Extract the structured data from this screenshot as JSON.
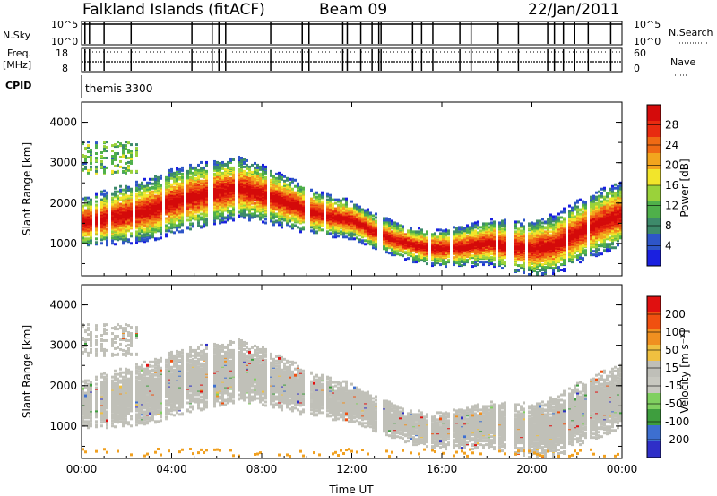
{
  "header": {
    "station": "Falkland Islands (fitACF)",
    "beam": "Beam 09",
    "date": "22/Jan/2011"
  },
  "status_panels": {
    "nsky_label": "N.Sky",
    "nsky_ticks": [
      "10^5",
      "10^0"
    ],
    "nsearch_label": "N.Search",
    "nsearch_ticks": [
      "10^5",
      "10^0"
    ],
    "freq_label_1": "Freq.",
    "freq_label_2": "[MHz]",
    "freq_ticks": [
      "18",
      "8"
    ],
    "nave_label": "Nave",
    "nave_ticks": [
      "60",
      "0"
    ],
    "cpid_label": "CPID",
    "cpid_value": "themis 3300"
  },
  "colors": {
    "power_scale": [
      "#1a20e0",
      "#2e55c8",
      "#3d8a6a",
      "#4fb04a",
      "#9ad23a",
      "#f2e52b",
      "#f2a51e",
      "#ef6a14",
      "#e82b10",
      "#d40b0b"
    ],
    "velocity_scale": [
      "#2f2fc8",
      "#3d6fd0",
      "#3e9e3e",
      "#80d060",
      "#c8c8c0",
      "#bfbfb8",
      "#f0c040",
      "#f09020",
      "#f05010",
      "#e01010"
    ],
    "ground_scatter": "#c0c0b8"
  },
  "chart_data": [
    {
      "type": "heatmap",
      "title": "Power",
      "xlabel": "Time UT",
      "ylabel": "Slant Range [km]",
      "x_ticks": [
        "00:00",
        "04:00",
        "08:00",
        "12:00",
        "16:00",
        "20:00",
        "00:00"
      ],
      "y_ticks": [
        "1000",
        "2000",
        "3000",
        "4000"
      ],
      "ylim": [
        200,
        4500
      ],
      "colorbar_label": "Power [dB]",
      "colorbar_ticks": [
        "4",
        "8",
        "12",
        "16",
        "20",
        "24",
        "28"
      ],
      "band_center_km": [
        [
          0,
          1500
        ],
        [
          1,
          1600
        ],
        [
          2,
          1700
        ],
        [
          3,
          1800
        ],
        [
          4,
          2000
        ],
        [
          5,
          2150
        ],
        [
          6,
          2250
        ],
        [
          7,
          2350
        ],
        [
          8,
          2200
        ],
        [
          9,
          2000
        ],
        [
          10,
          1800
        ],
        [
          11,
          1650
        ],
        [
          12,
          1550
        ],
        [
          13,
          1250
        ],
        [
          14,
          1050
        ],
        [
          15,
          900
        ],
        [
          16,
          850
        ],
        [
          17,
          900
        ],
        [
          18,
          1000
        ],
        [
          19,
          900
        ],
        [
          20,
          850
        ],
        [
          21,
          950
        ],
        [
          22,
          1250
        ],
        [
          23,
          1500
        ],
        [
          24,
          1700
        ]
      ]
    },
    {
      "type": "heatmap",
      "title": "Velocity",
      "xlabel": "Time UT",
      "ylabel": "Slant Range [km]",
      "x_ticks": [
        "00:00",
        "04:00",
        "08:00",
        "12:00",
        "16:00",
        "20:00",
        "00:00"
      ],
      "y_ticks": [
        "1000",
        "2000",
        "3000",
        "4000"
      ],
      "ylim": [
        200,
        4500
      ],
      "colorbar_label": "Velocity [m s⁻¹]",
      "colorbar_ticks": [
        "200",
        "100",
        "50",
        "15",
        "-15",
        "-50",
        "-100",
        "-200"
      ]
    }
  ]
}
